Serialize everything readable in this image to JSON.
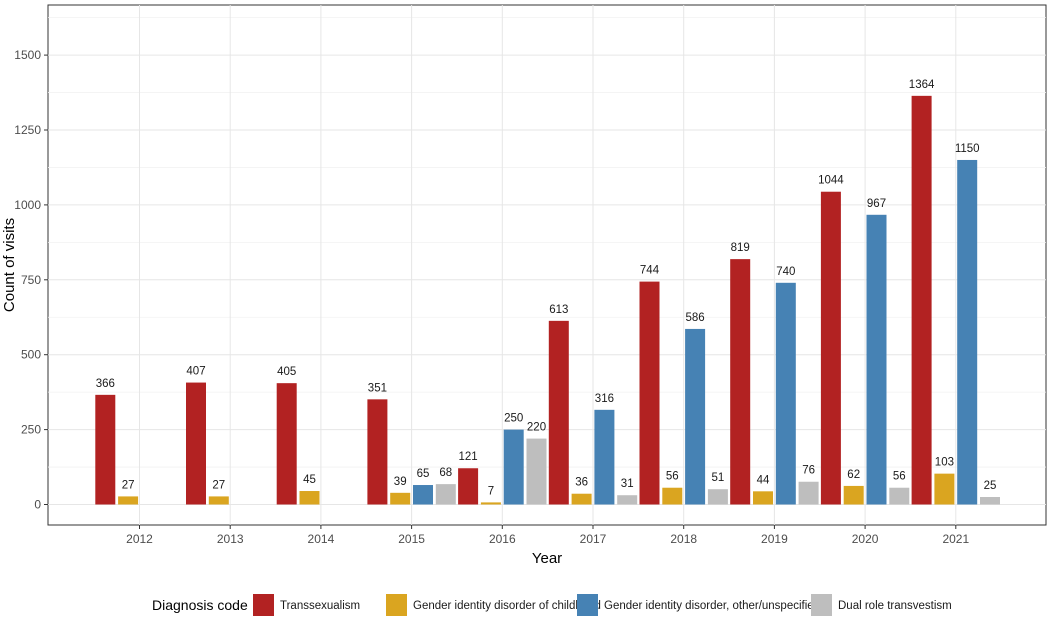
{
  "chart_data": {
    "type": "bar",
    "title": "",
    "xlabel": "Year",
    "ylabel": "Count of visits",
    "ylim": [
      -50,
      1650
    ],
    "yticks": [
      0,
      250,
      500,
      750,
      1000,
      1250,
      1500
    ],
    "ytick_labels": [
      "0",
      "250",
      "500",
      "750",
      "1000",
      "1250",
      "1500"
    ],
    "grid": true,
    "legend_position": "bottom",
    "legend_title": "Diagnosis code",
    "categories": [
      "2012",
      "2013",
      "2014",
      "2015",
      "2016",
      "2017",
      "2018",
      "2019",
      "2020",
      "2021"
    ],
    "series": [
      {
        "name": "Transsexualism",
        "color": "#b22222",
        "values": [
          366,
          407,
          405,
          351,
          121,
          613,
          744,
          819,
          1044,
          1364
        ]
      },
      {
        "name": "Gender identity disorder of childhood",
        "color": "#daa520",
        "values": [
          27,
          27,
          45,
          39,
          7,
          36,
          56,
          44,
          62,
          103
        ]
      },
      {
        "name": "Gender identity disorder, other/unspecified",
        "color": "#4682b4",
        "values": [
          null,
          null,
          null,
          65,
          250,
          316,
          586,
          740,
          967,
          1150
        ]
      },
      {
        "name": "Dual role transvestism",
        "color": "#bebebe",
        "values": [
          null,
          null,
          null,
          68,
          220,
          31,
          51,
          76,
          56,
          25
        ]
      }
    ]
  }
}
